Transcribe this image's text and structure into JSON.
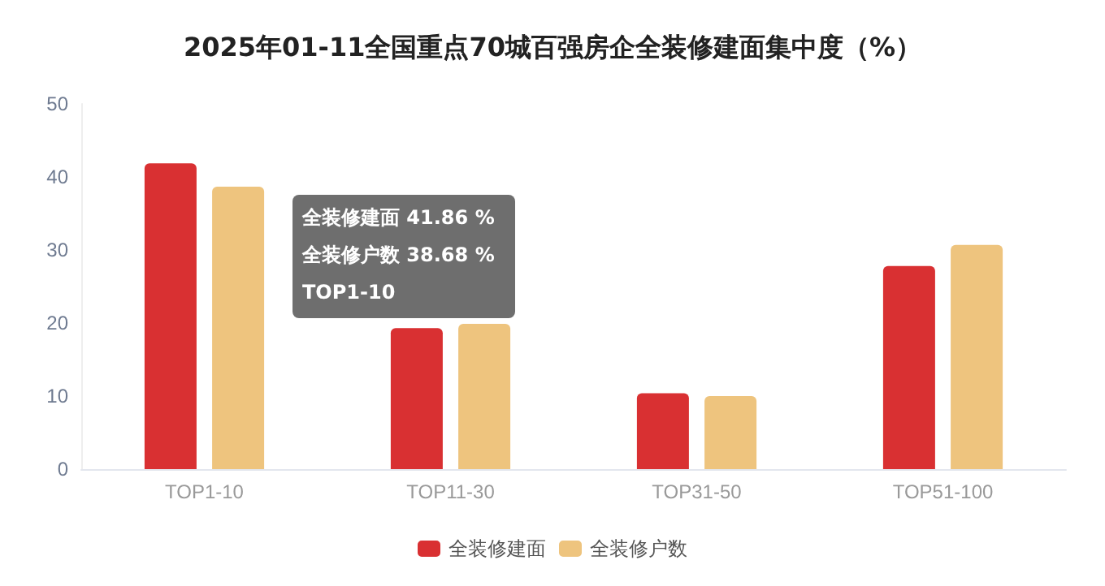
{
  "chart_data": {
    "type": "bar",
    "title": "2025年01-11全国重点70城百强房企全装修建面集中度（%）",
    "categories": [
      "TOP1-10",
      "TOP11-30",
      "TOP31-50",
      "TOP51-100"
    ],
    "series": [
      {
        "name": "全装修建面",
        "color": "#d93032",
        "values": [
          41.86,
          19.3,
          10.4,
          27.8
        ]
      },
      {
        "name": "全装修户数",
        "color": "#eec47e",
        "values": [
          38.68,
          19.9,
          10.0,
          30.7
        ]
      }
    ],
    "ylim": [
      0,
      50
    ],
    "yticks": [
      0,
      10,
      20,
      30,
      40,
      50
    ],
    "grid": false,
    "legend": "bottom",
    "annotations": [
      "全装修建面 41.86 %",
      "全装修户数 38.68 %",
      "TOP1-10"
    ]
  }
}
